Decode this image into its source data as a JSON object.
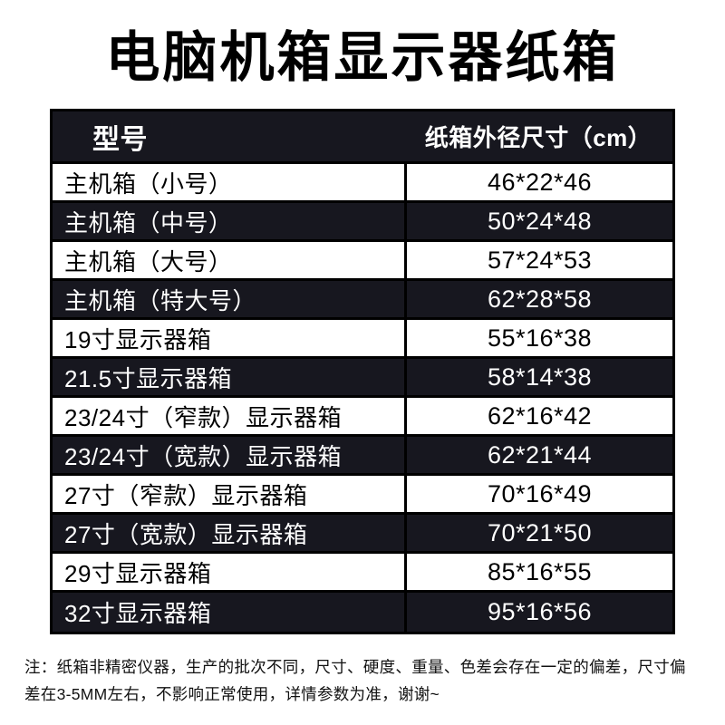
{
  "title": "电脑机箱显示器纸箱",
  "table": {
    "headers": [
      "型号",
      "纸箱外径尺寸（cm）"
    ],
    "rows": [
      {
        "model": "主机箱（小号）",
        "size": "46*22*46"
      },
      {
        "model": "主机箱（中号）",
        "size": "50*24*48"
      },
      {
        "model": "主机箱（大号）",
        "size": "57*24*53"
      },
      {
        "model": "主机箱（特大号）",
        "size": "62*28*58"
      },
      {
        "model": "19寸显示器箱",
        "size": "55*16*38"
      },
      {
        "model": "21.5寸显示器箱",
        "size": "58*14*38"
      },
      {
        "model": "23/24寸（窄款）显示器箱",
        "size": "62*16*42"
      },
      {
        "model": "23/24寸（宽款）显示器箱",
        "size": "62*21*44"
      },
      {
        "model": "27寸（窄款）显示器箱",
        "size": "70*16*49"
      },
      {
        "model": "27寸（宽款）显示器箱",
        "size": "70*21*50"
      },
      {
        "model": "29寸显示器箱",
        "size": "85*16*55"
      },
      {
        "model": "32寸显示器箱",
        "size": "95*16*56"
      }
    ]
  },
  "note": "注：纸箱非精密仪器，生产的批次不同，尺寸、硬度、重量、色差会存在一定的偏差，尺寸偏差在3-5MM左右，不影响正常使用，详情参数为准，谢谢~",
  "colors": {
    "dark_row_bg": "#17171f",
    "light_row_bg": "#ffffff",
    "border": "#000000",
    "text_dark": "#000000",
    "text_light": "#ffffff"
  }
}
